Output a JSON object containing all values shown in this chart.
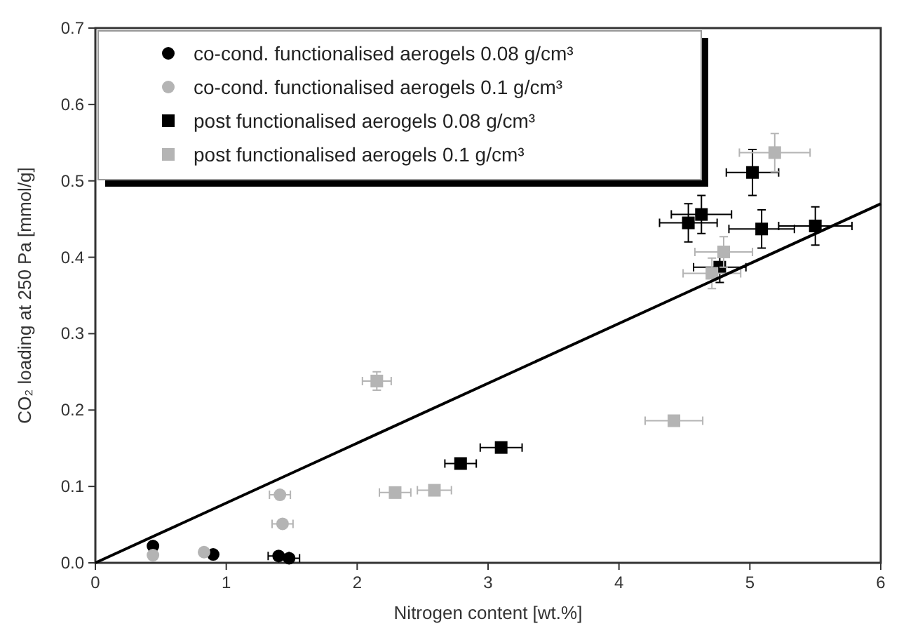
{
  "chart_data": {
    "type": "scatter",
    "xlabel": "Nitrogen content [wt.%]",
    "ylabel": "CO₂ loading at 250 Pa [mmol/g]",
    "xlim": [
      0,
      6
    ],
    "ylim": [
      0,
      0.7
    ],
    "xticks": [
      0,
      1,
      2,
      3,
      4,
      5,
      6
    ],
    "yticks": [
      {
        "value": 0,
        "label": "0.0"
      },
      {
        "value": 0.1,
        "label": "0.1"
      },
      {
        "value": 0.2,
        "label": "0.2"
      },
      {
        "value": 0.3,
        "label": "0.3"
      },
      {
        "value": 0.4,
        "label": "0.4"
      },
      {
        "value": 0.5,
        "label": "0.5"
      },
      {
        "value": 0.6,
        "label": "0.6"
      },
      {
        "value": 0.7,
        "label": "0.7"
      }
    ],
    "grid": false,
    "legend": "top left",
    "series": [
      {
        "name": "co-cond. functionalised aerogels 0.08 g/cm³",
        "color": "#000000",
        "marker": "circle",
        "x": [
          0.44,
          0.9,
          1.4,
          1.48
        ],
        "values": [
          0.022,
          0.011,
          0.009,
          0.006
        ],
        "xerrors": [
          null,
          null,
          0.08,
          0.08
        ]
      },
      {
        "name": "co-cond. functionalised aerogels 0.1 g/cm³",
        "color": "#b4b4b4",
        "marker": "circle",
        "x": [
          0.44,
          0.83,
          1.41,
          1.43
        ],
        "values": [
          0.01,
          0.014,
          0.089,
          0.051
        ],
        "xerrors": [
          null,
          null,
          0.08,
          0.08
        ]
      },
      {
        "name": "post functionalised aerogels 0.08 g/cm³",
        "color": "#000000",
        "marker": "square",
        "x": [
          2.79,
          3.1,
          4.53,
          4.63,
          5.02,
          5.09,
          5.5,
          4.77
        ],
        "values": [
          0.13,
          0.151,
          0.445,
          0.456,
          0.511,
          0.437,
          0.441,
          0.387
        ],
        "xerrors": [
          0.12,
          0.16,
          0.22,
          0.23,
          0.2,
          0.25,
          0.28,
          0.2
        ],
        "errors": [
          null,
          null,
          0.025,
          0.025,
          0.03,
          0.025,
          0.025,
          0.02
        ]
      },
      {
        "name": "post functionalised aerogels 0.1 g/cm³",
        "color": "#b4b4b4",
        "marker": "square",
        "x": [
          2.15,
          2.29,
          2.59,
          4.42,
          5.19,
          4.8,
          4.71
        ],
        "values": [
          0.238,
          0.092,
          0.095,
          0.186,
          0.537,
          0.407,
          0.379
        ],
        "xerrors": [
          0.11,
          0.12,
          0.13,
          0.22,
          0.27,
          0.22,
          0.22
        ],
        "errors": [
          0.012,
          null,
          null,
          null,
          0.025,
          0.02,
          0.02
        ]
      },
      {
        "type": "line",
        "color": "#000000",
        "marker": "none",
        "x": [
          0,
          6
        ],
        "values": [
          0,
          0.47
        ]
      }
    ]
  }
}
